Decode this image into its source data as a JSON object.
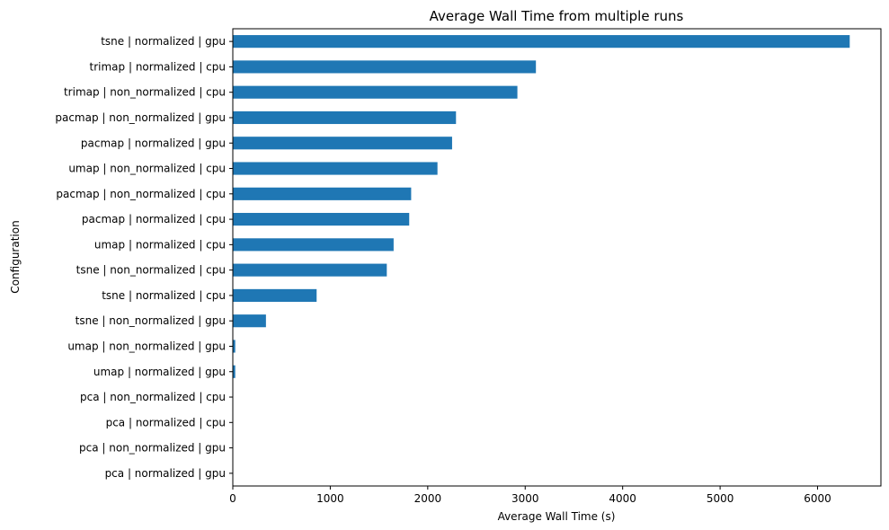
{
  "chart_data": {
    "type": "bar",
    "orientation": "horizontal",
    "title": "Average Wall Time from multiple runs",
    "xlabel": "Average Wall Time (s)",
    "ylabel": "Configuration",
    "xlim": [
      0,
      6650
    ],
    "xticks": [
      0,
      1000,
      2000,
      3000,
      4000,
      5000,
      6000
    ],
    "grid": false,
    "legend": "none",
    "bar_color": "#1f77b4",
    "categories": [
      "tsne | normalized | gpu",
      "trimap | normalized | cpu",
      "trimap | non_normalized | cpu",
      "pacmap | non_normalized | gpu",
      "pacmap | normalized | gpu",
      "umap | non_normalized | cpu",
      "pacmap | non_normalized | cpu",
      "pacmap | normalized | cpu",
      "umap | normalized | cpu",
      "tsne | non_normalized | cpu",
      "tsne | normalized | cpu",
      "tsne | non_normalized | gpu",
      "umap | non_normalized | gpu",
      "umap | normalized | gpu",
      "pca | non_normalized | cpu",
      "pca | normalized | cpu",
      "pca | non_normalized | gpu",
      "pca | normalized | gpu"
    ],
    "values": [
      6330,
      3110,
      2920,
      2290,
      2250,
      2100,
      1830,
      1810,
      1650,
      1580,
      860,
      340,
      25,
      25,
      3,
      3,
      2,
      2
    ]
  }
}
